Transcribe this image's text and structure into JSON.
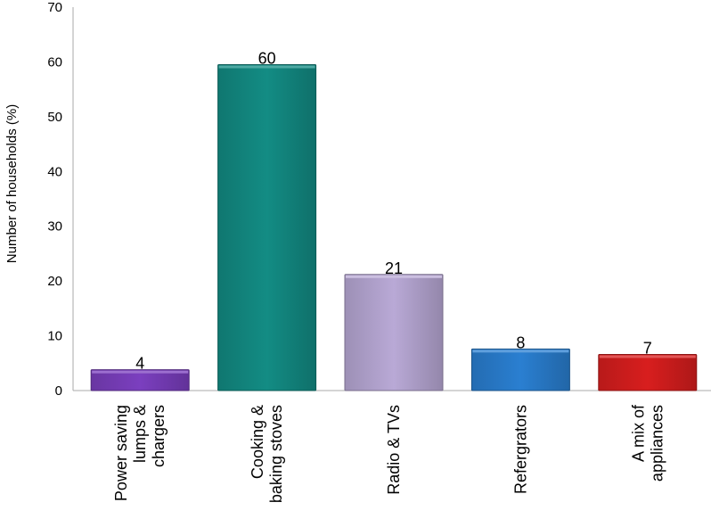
{
  "chart_data": {
    "type": "bar",
    "title": "",
    "xlabel": "",
    "ylabel": "Number of households (%)",
    "ylim": [
      0,
      70
    ],
    "yticks": [
      0,
      10,
      20,
      30,
      40,
      50,
      60,
      70
    ],
    "grid": false,
    "legend": "none",
    "categories": [
      [
        "Power saving",
        "lumps &",
        "chargers"
      ],
      [
        "Cooking &",
        "baking stoves"
      ],
      [
        "Radio & TVs"
      ],
      [
        "Refergrators"
      ],
      [
        "A mix of",
        "appliances"
      ]
    ],
    "values": [
      4,
      60,
      21,
      8,
      7
    ],
    "bar_values": [
      3.8,
      59.5,
      21.2,
      7.6,
      6.6
    ],
    "data_labels": [
      "4",
      "60",
      "21",
      "8",
      "7"
    ],
    "colors": [
      "#7b3fbf",
      "#138c84",
      "#b9a9d6",
      "#2a7fd1",
      "#d81e1e"
    ]
  }
}
